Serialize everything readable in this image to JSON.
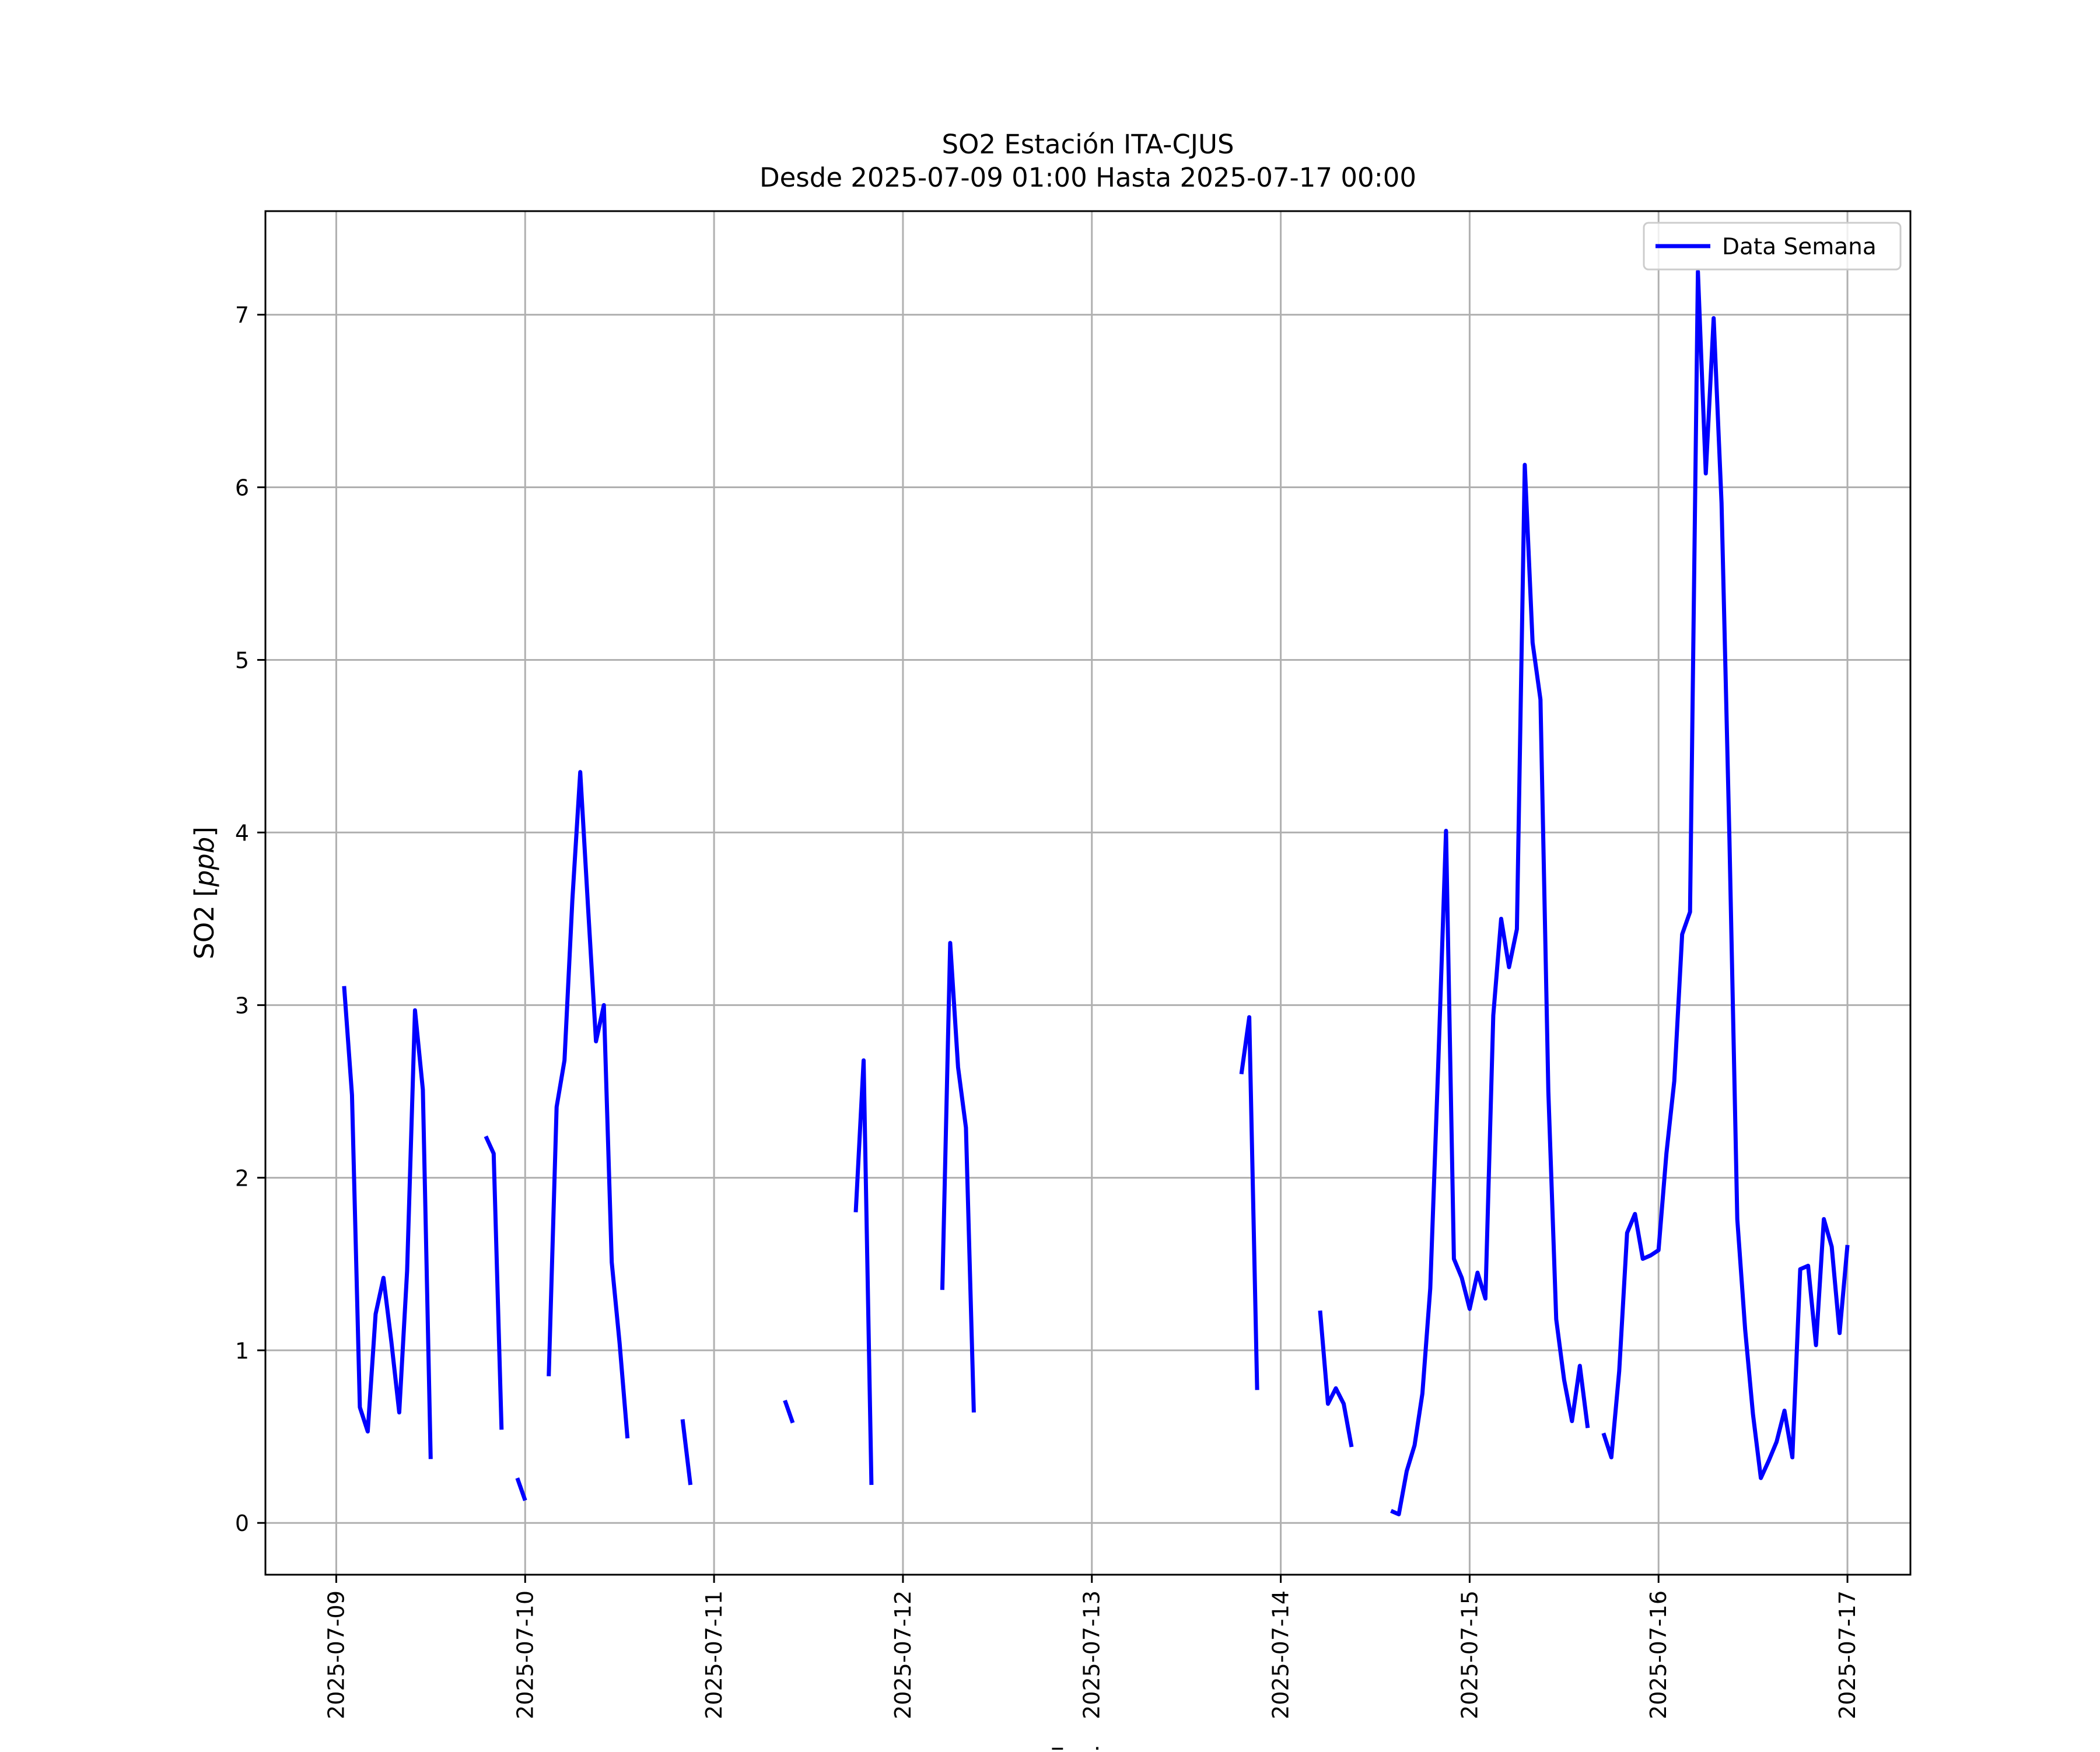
{
  "chart_data": {
    "type": "line",
    "title": "SO2 Estación ITA-CJUS",
    "subtitle": "Desde 2025-07-09 01:00 Hasta 2025-07-17 00:00",
    "xlabel": "Fecha",
    "ylabel": "SO2 [ppb]",
    "ylabel_parts": {
      "plain": "SO2 [",
      "italic": "ppb",
      "close": "]"
    },
    "x_ticks": [
      "2025-07-09",
      "2025-07-10",
      "2025-07-11",
      "2025-07-12",
      "2025-07-13",
      "2025-07-14",
      "2025-07-15",
      "2025-07-16",
      "2025-07-17"
    ],
    "y_ticks": [
      "0",
      "1",
      "2",
      "3",
      "4",
      "5",
      "6",
      "7"
    ],
    "xlim": [
      "2025-07-08 15:00",
      "2025-07-17 08:00"
    ],
    "ylim": [
      -0.3,
      7.6
    ],
    "grid": true,
    "legend_position": "top-right",
    "series": [
      {
        "name": "Data Semana",
        "color": "#0000ff",
        "segments": [
          [
            [
              "2025-07-09 01:00",
              3.11
            ],
            [
              "2025-07-09 02:00",
              2.48
            ],
            [
              "2025-07-09 03:00",
              0.67
            ],
            [
              "2025-07-09 04:00",
              0.53
            ],
            [
              "2025-07-09 05:00",
              1.21
            ],
            [
              "2025-07-09 06:00",
              1.42
            ],
            [
              "2025-07-09 07:00",
              1.05
            ],
            [
              "2025-07-09 08:00",
              0.64
            ],
            [
              "2025-07-09 09:00",
              1.46
            ],
            [
              "2025-07-09 10:00",
              2.97
            ],
            [
              "2025-07-09 11:00",
              2.51
            ],
            [
              "2025-07-09 12:00",
              0.37
            ]
          ],
          [
            [
              "2025-07-09 19:00",
              2.24
            ],
            [
              "2025-07-09 20:00",
              2.14
            ],
            [
              "2025-07-09 21:00",
              0.54
            ]
          ],
          [
            [
              "2025-07-09 23:00",
              0.26
            ],
            [
              "2025-07-10 00:00",
              0.13
            ]
          ],
          [
            [
              "2025-07-10 03:00",
              0.85
            ],
            [
              "2025-07-10 04:00",
              2.41
            ],
            [
              "2025-07-10 05:00",
              2.68
            ],
            [
              "2025-07-10 06:00",
              3.61
            ],
            [
              "2025-07-10 07:00",
              4.35
            ],
            [
              "2025-07-10 08:00",
              3.56
            ],
            [
              "2025-07-10 09:00",
              2.79
            ],
            [
              "2025-07-10 10:00",
              3.0
            ],
            [
              "2025-07-10 11:00",
              1.51
            ],
            [
              "2025-07-10 12:00",
              1.04
            ],
            [
              "2025-07-10 13:00",
              0.49
            ]
          ],
          [
            [
              "2025-07-10 20:00",
              0.6
            ],
            [
              "2025-07-10 21:00",
              0.22
            ]
          ],
          [
            [
              "2025-07-11 09:00",
              0.71
            ],
            [
              "2025-07-11 10:00",
              0.58
            ]
          ],
          [
            [
              "2025-07-11 18:00",
              1.8
            ],
            [
              "2025-07-11 19:00",
              2.68
            ],
            [
              "2025-07-11 20:00",
              0.22
            ]
          ],
          [
            [
              "2025-07-12 05:00",
              1.35
            ],
            [
              "2025-07-12 06:00",
              3.36
            ],
            [
              "2025-07-12 07:00",
              2.64
            ],
            [
              "2025-07-12 08:00",
              2.29
            ],
            [
              "2025-07-12 09:00",
              0.64
            ]
          ],
          [
            [
              "2025-07-13 19:00",
              2.6
            ],
            [
              "2025-07-13 20:00",
              2.93
            ],
            [
              "2025-07-13 21:00",
              0.77
            ]
          ],
          [
            [
              "2025-07-14 05:00",
              1.23
            ],
            [
              "2025-07-14 06:00",
              0.69
            ],
            [
              "2025-07-14 07:00",
              0.78
            ],
            [
              "2025-07-14 08:00",
              0.69
            ],
            [
              "2025-07-14 09:00",
              0.44
            ]
          ],
          [
            [
              "2025-07-14 14:00",
              0.07
            ],
            [
              "2025-07-14 15:00",
              0.05
            ],
            [
              "2025-07-14 16:00",
              0.3
            ],
            [
              "2025-07-14 17:00",
              0.45
            ],
            [
              "2025-07-14 18:00",
              0.75
            ],
            [
              "2025-07-14 19:00",
              1.36
            ],
            [
              "2025-07-14 20:00",
              2.64
            ],
            [
              "2025-07-14 21:00",
              4.01
            ],
            [
              "2025-07-14 22:00",
              1.53
            ],
            [
              "2025-07-14 23:00",
              1.42
            ],
            [
              "2025-07-15 00:00",
              1.24
            ],
            [
              "2025-07-15 01:00",
              1.45
            ],
            [
              "2025-07-15 02:00",
              1.3
            ],
            [
              "2025-07-15 03:00",
              2.94
            ],
            [
              "2025-07-15 04:00",
              3.5
            ],
            [
              "2025-07-15 05:00",
              3.22
            ],
            [
              "2025-07-15 06:00",
              3.44
            ],
            [
              "2025-07-15 07:00",
              6.13
            ],
            [
              "2025-07-15 08:00",
              5.1
            ],
            [
              "2025-07-15 09:00",
              4.77
            ],
            [
              "2025-07-15 10:00",
              2.5
            ],
            [
              "2025-07-15 11:00",
              1.18
            ],
            [
              "2025-07-15 12:00",
              0.83
            ],
            [
              "2025-07-15 13:00",
              0.59
            ],
            [
              "2025-07-15 14:00",
              0.91
            ],
            [
              "2025-07-15 15:00",
              0.55
            ]
          ],
          [
            [
              "2025-07-15 17:00",
              0.52
            ],
            [
              "2025-07-15 18:00",
              0.38
            ],
            [
              "2025-07-15 19:00",
              0.88
            ],
            [
              "2025-07-15 20:00",
              1.68
            ],
            [
              "2025-07-15 21:00",
              1.79
            ],
            [
              "2025-07-15 22:00",
              1.53
            ],
            [
              "2025-07-15 23:00",
              1.55
            ],
            [
              "2025-07-16 00:00",
              1.58
            ],
            [
              "2025-07-16 01:00",
              2.14
            ],
            [
              "2025-07-16 02:00",
              2.56
            ],
            [
              "2025-07-16 03:00",
              3.41
            ],
            [
              "2025-07-16 04:00",
              3.54
            ],
            [
              "2025-07-16 05:00",
              7.25
            ],
            [
              "2025-07-16 06:00",
              6.08
            ],
            [
              "2025-07-16 07:00",
              6.98
            ],
            [
              "2025-07-16 08:00",
              5.91
            ],
            [
              "2025-07-16 09:00",
              3.97
            ],
            [
              "2025-07-16 10:00",
              1.76
            ],
            [
              "2025-07-16 11:00",
              1.12
            ],
            [
              "2025-07-16 12:00",
              0.63
            ],
            [
              "2025-07-16 13:00",
              0.26
            ],
            [
              "2025-07-16 14:00",
              0.36
            ],
            [
              "2025-07-16 15:00",
              0.47
            ],
            [
              "2025-07-16 16:00",
              0.65
            ],
            [
              "2025-07-16 17:00",
              0.38
            ],
            [
              "2025-07-16 18:00",
              1.47
            ],
            [
              "2025-07-16 19:00",
              1.49
            ],
            [
              "2025-07-16 20:00",
              1.03
            ],
            [
              "2025-07-16 21:00",
              1.76
            ],
            [
              "2025-07-16 22:00",
              1.6
            ],
            [
              "2025-07-16 23:00",
              1.1
            ],
            [
              "2025-07-17 00:00",
              1.61
            ]
          ]
        ]
      }
    ]
  }
}
